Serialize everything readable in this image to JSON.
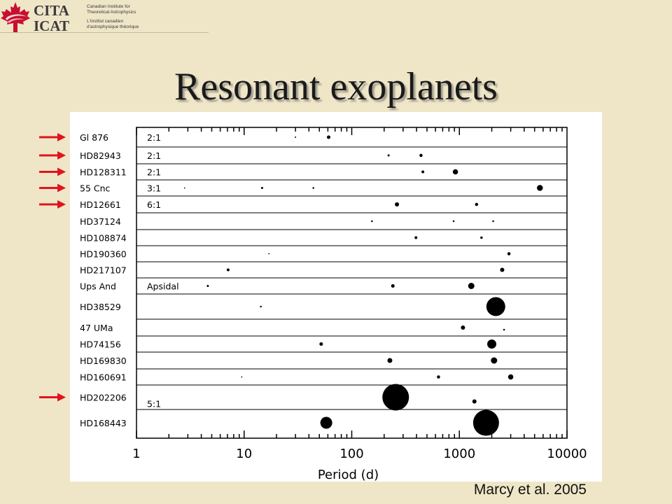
{
  "slide": {
    "title": "Resonant exoplanets",
    "credit": "Marcy et al. 2005",
    "background": "#efe6c8",
    "arrow_color": "#e0141e"
  },
  "logo": {
    "abbr_en": "CITA",
    "abbr_fr": "ICAT",
    "name_en_line1": "Canadian Institute for",
    "name_en_line2": "Theoretical Astrophysics",
    "name_fr_line1": "L'Institut canadien",
    "name_fr_line2": "d'astrophysique théorique",
    "leaf_color": "#c8102e"
  },
  "chart_data": {
    "type": "scatter",
    "xlabel": "Period (d)",
    "xscale": "log",
    "xlim": [
      1,
      10000
    ],
    "xticks": [
      "1",
      "10",
      "100",
      "1000",
      "10000"
    ],
    "marker_size_meaning": "planet mass (symbol size)",
    "rows": [
      {
        "system": "Gl 876",
        "annotation": "2:1",
        "arrow": true,
        "planets": [
          {
            "period": 30,
            "size": 1
          },
          {
            "period": 61,
            "size": 4
          }
        ]
      },
      {
        "system": "HD82943",
        "annotation": "2:1",
        "arrow": true,
        "planets": [
          {
            "period": 220,
            "size": 2
          },
          {
            "period": 440,
            "size": 3.5
          }
        ]
      },
      {
        "system": "HD128311",
        "annotation": "2:1",
        "arrow": true,
        "planets": [
          {
            "period": 458,
            "size": 3
          },
          {
            "period": 919,
            "size": 6.5
          }
        ]
      },
      {
        "system": "55 Cnc",
        "annotation": "3:1",
        "arrow": true,
        "planets": [
          {
            "period": 2.8,
            "size": 0.8
          },
          {
            "period": 14.7,
            "size": 2
          },
          {
            "period": 44,
            "size": 1.5
          },
          {
            "period": 5600,
            "size": 7.5
          }
        ]
      },
      {
        "system": "HD12661",
        "annotation": "6:1",
        "arrow": true,
        "planets": [
          {
            "period": 263,
            "size": 5
          },
          {
            "period": 1444,
            "size": 3.5
          }
        ]
      },
      {
        "system": "HD37124",
        "annotation": "",
        "arrow": false,
        "planets": [
          {
            "period": 154,
            "size": 1.5
          },
          {
            "period": 885,
            "size": 1.5
          },
          {
            "period": 2060,
            "size": 1.5
          }
        ]
      },
      {
        "system": "HD108874",
        "annotation": "",
        "arrow": false,
        "planets": [
          {
            "period": 395,
            "size": 3
          },
          {
            "period": 1605,
            "size": 2.5
          }
        ]
      },
      {
        "system": "HD190360",
        "annotation": "",
        "arrow": false,
        "planets": [
          {
            "period": 17,
            "size": 0.8
          },
          {
            "period": 2890,
            "size": 3.5
          }
        ]
      },
      {
        "system": "HD217107",
        "annotation": "",
        "arrow": false,
        "planets": [
          {
            "period": 7.1,
            "size": 3
          },
          {
            "period": 2500,
            "size": 5
          }
        ]
      },
      {
        "system": "Ups And",
        "annotation": "Apsidal",
        "arrow": false,
        "planets": [
          {
            "period": 4.6,
            "size": 2
          },
          {
            "period": 241,
            "size": 4
          },
          {
            "period": 1290,
            "size": 8
          }
        ]
      },
      {
        "system": "HD38529",
        "annotation": "",
        "arrow": false,
        "planets": [
          {
            "period": 14.3,
            "size": 1.5
          },
          {
            "period": 2180,
            "size": 26
          }
        ]
      },
      {
        "system": "47 UMa",
        "annotation": "",
        "arrow": false,
        "planets": [
          {
            "period": 1080,
            "size": 5
          },
          {
            "period": 2600,
            "size": 1.5
          }
        ]
      },
      {
        "system": "HD74156",
        "annotation": "",
        "arrow": false,
        "planets": [
          {
            "period": 52,
            "size": 4
          },
          {
            "period": 2000,
            "size": 12
          }
        ]
      },
      {
        "system": "HD169830",
        "annotation": "",
        "arrow": false,
        "planets": [
          {
            "period": 226,
            "size": 6
          },
          {
            "period": 2100,
            "size": 8
          }
        ]
      },
      {
        "system": "HD160691",
        "annotation": "",
        "arrow": false,
        "planets": [
          {
            "period": 9.5,
            "size": 0.8
          },
          {
            "period": 640,
            "size": 3.5
          },
          {
            "period": 3000,
            "size": 6.5
          }
        ]
      },
      {
        "system": "HD202206",
        "annotation": "5:1",
        "arrow": true,
        "planets": [
          {
            "period": 256,
            "size": 37
          },
          {
            "period": 1380,
            "size": 5
          }
        ]
      },
      {
        "system": "HD168443",
        "annotation": "",
        "arrow": false,
        "planets": [
          {
            "period": 58,
            "size": 16
          },
          {
            "period": 1770,
            "size": 36
          }
        ]
      }
    ]
  }
}
